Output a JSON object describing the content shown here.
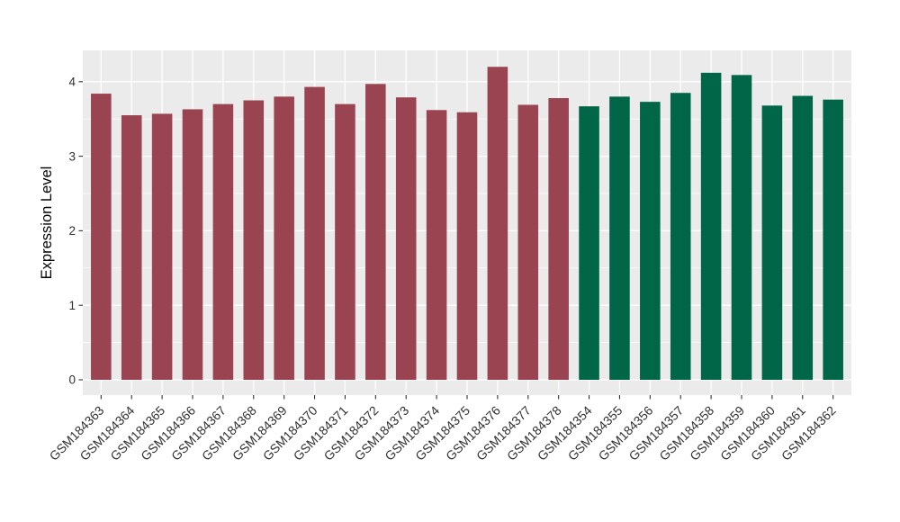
{
  "chart_data": {
    "type": "bar",
    "title": "",
    "xlabel": "",
    "ylabel": "Expression Level",
    "ylim": [
      0,
      4.42
    ],
    "yticks": [
      "0",
      "1",
      "2",
      "3",
      "4"
    ],
    "grid": {
      "major_horizontal": [
        0,
        1,
        2,
        3,
        4
      ],
      "minor_horizontal": [
        0.5,
        1.5,
        2.5,
        3.5
      ],
      "vertical": "one major gridline per category",
      "gridline_color": "#FFFFFF"
    },
    "legend": "none",
    "panel_background": "#EBEBEB",
    "figure_background": "#FFFFFF",
    "axis_text_color": "#303030",
    "axis_title_color": "#000000",
    "group_colors": {
      "maroon": "#9A4452",
      "green": "#016647"
    },
    "categories": [
      "GSM184363",
      "GSM184364",
      "GSM184365",
      "GSM184366",
      "GSM184367",
      "GSM184368",
      "GSM184369",
      "GSM184370",
      "GSM184371",
      "GSM184372",
      "GSM184373",
      "GSM184374",
      "GSM184375",
      "GSM184376",
      "GSM184377",
      "GSM184378",
      "GSM184354",
      "GSM184355",
      "GSM184356",
      "GSM184357",
      "GSM184358",
      "GSM184359",
      "GSM184360",
      "GSM184361",
      "GSM184362"
    ],
    "values": [
      3.84,
      3.55,
      3.57,
      3.63,
      3.7,
      3.75,
      3.8,
      3.93,
      3.7,
      3.97,
      3.79,
      3.62,
      3.59,
      4.2,
      3.69,
      3.78,
      3.67,
      3.8,
      3.73,
      3.85,
      4.12,
      4.09,
      3.68,
      3.81,
      3.76
    ],
    "groups": [
      "maroon",
      "maroon",
      "maroon",
      "maroon",
      "maroon",
      "maroon",
      "maroon",
      "maroon",
      "maroon",
      "maroon",
      "maroon",
      "maroon",
      "maroon",
      "maroon",
      "maroon",
      "maroon",
      "green",
      "green",
      "green",
      "green",
      "green",
      "green",
      "green",
      "green",
      "green"
    ]
  }
}
